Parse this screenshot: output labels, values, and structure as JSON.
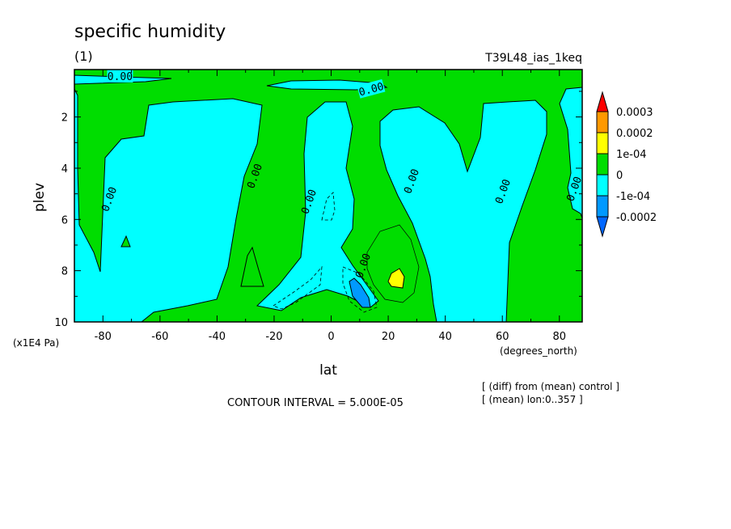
{
  "chart_data": {
    "type": "heatmap",
    "title": "specific humidity",
    "subtitle": "(1)",
    "experiment": "T39L48_ias_1keq",
    "xlabel": "lat",
    "xunits": "(degrees_north)",
    "ylabel": "plev",
    "yunits": "(x1E4 Pa)",
    "xlim": [
      -90,
      88
    ],
    "ylim": [
      10,
      0.15
    ],
    "xticks": [
      -80,
      -60,
      -40,
      -20,
      0,
      20,
      40,
      60,
      80
    ],
    "yticks": [
      2,
      4,
      6,
      8,
      10
    ],
    "contour_interval": "CONTOUR INTERVAL = 5.000E-05",
    "notes": [
      "[ (diff) from (mean) control ]",
      "[ (mean) lon:0..357 ]"
    ],
    "contour_labels": [
      {
        "text": "0.00",
        "lat": -74,
        "plev": 0.4
      },
      {
        "text": "0.00",
        "lat": 14,
        "plev": 0.9
      },
      {
        "text": "0.00",
        "lat": -78,
        "plev": 5.2
      },
      {
        "text": "0.00",
        "lat": -27,
        "plev": 4.3
      },
      {
        "text": "0.00",
        "lat": -8,
        "plev": 5.3
      },
      {
        "text": "0.00",
        "lat": 28,
        "plev": 4.5
      },
      {
        "text": "0.00",
        "lat": 60,
        "plev": 4.9
      },
      {
        "text": "0.00",
        "lat": 11,
        "plev": 7.8
      },
      {
        "text": "0.00",
        "lat": 85,
        "plev": 4.8
      }
    ],
    "colorbar": {
      "labels": [
        "0.0003",
        "0.0002",
        "1e-04",
        "0",
        "-1e-04",
        "-0.0002"
      ],
      "colors": [
        "#ff0000",
        "#ff9900",
        "#ffff00",
        "#00dd00",
        "#00ffff",
        "#0099ff",
        "#0066ff"
      ]
    },
    "regions": [
      {
        "name": "cyan-top-band",
        "level": "-1e-04",
        "color": "#00ffff"
      },
      {
        "name": "cyan-south",
        "level": "-1e-04",
        "color": "#00ffff"
      },
      {
        "name": "cyan-central",
        "level": "-1e-04",
        "color": "#00ffff"
      },
      {
        "name": "cyan-north",
        "level": "-1e-04",
        "color": "#00ffff"
      },
      {
        "name": "cyan-strip-top",
        "level": "-1e-04",
        "color": "#00ffff"
      },
      {
        "name": "cyan-north-edge",
        "level": "-1e-04",
        "color": "#00ffff"
      },
      {
        "name": "blue-blob",
        "level": "-0.0002",
        "color": "#0099ff"
      },
      {
        "name": "yellow-blob",
        "level": "1e-04",
        "color": "#ffff00"
      },
      {
        "name": "green-pocket",
        "level": "0",
        "color": "#00dd00"
      }
    ]
  }
}
